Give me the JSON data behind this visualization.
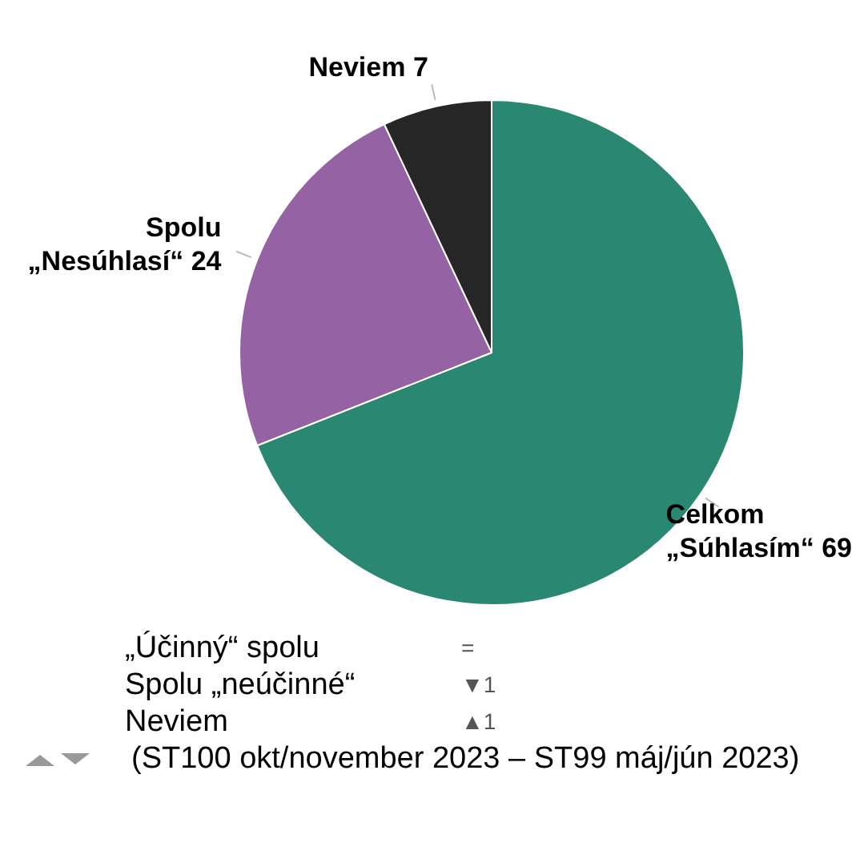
{
  "chart_data": {
    "type": "pie",
    "categories": [
      "Celkom „Súhlasím“",
      "Spolu „Nesúhlasí“",
      "Neviem"
    ],
    "values": [
      69,
      24,
      7
    ],
    "colors": [
      "#2a8771",
      "#9563a3",
      "#262626"
    ],
    "data_labels": true,
    "legend": false,
    "annotations": [
      "„Účinný“ spolu",
      "=",
      "Spolu „neúčinné“",
      "▼1",
      "Neviem",
      "▲1",
      "(ST100 okt/november 2023 – ST99 máj/jún 2023)"
    ]
  }
}
